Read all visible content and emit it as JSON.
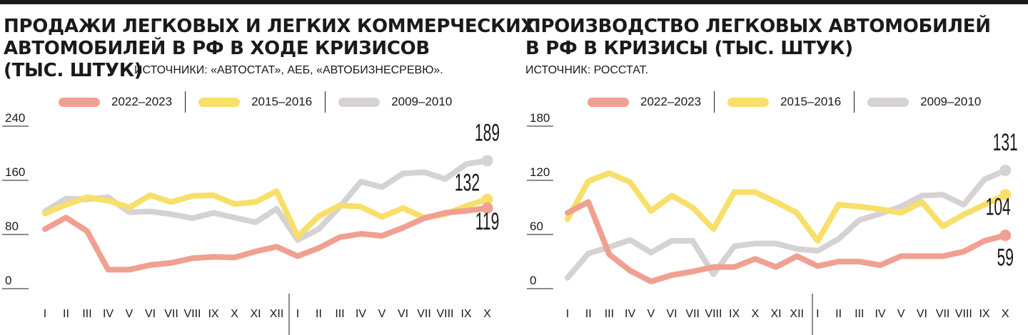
{
  "chart_data": [
    {
      "type": "line",
      "title": "ПРОДАЖИ ЛЕГКОВЫХ И ЛЕГКИХ КОММЕРЧЕСКИХ АВТОМОБИЛЕЙ В РФ В ХОДЕ КРИЗИСОВ",
      "title_lines": [
        "ПРОДАЖИ ЛЕГКОВЫХ И ЛЕГКИХ КОММЕРЧЕСКИХ",
        "АВТОМОБИЛЕЙ В РФ В ХОДЕ КРИЗИСОВ"
      ],
      "unit": "(ТЫС. ШТУК)",
      "source": "ИСТОЧНИКИ: «АВТОСТАТ», АЕБ, «АВТОБИЗНЕСРЕВЮ».",
      "categories": [
        "I",
        "II",
        "III",
        "IV",
        "V",
        "VI",
        "VII",
        "VIII",
        "IX",
        "X",
        "XI",
        "XII",
        "I",
        "II",
        "III",
        "IV",
        "V",
        "VI",
        "VII",
        "VIII",
        "IX",
        "X"
      ],
      "ylim": [
        0,
        240
      ],
      "yticks": [
        0,
        80,
        160,
        240
      ],
      "legend_position": "top",
      "series": [
        {
          "name": "2022–2023",
          "color": "#f0a090",
          "values": [
            88,
            105,
            85,
            28,
            28,
            35,
            38,
            45,
            47,
            46,
            55,
            62,
            48,
            60,
            76,
            81,
            78,
            90,
            104,
            112,
            115,
            119
          ],
          "end_label": "119"
        },
        {
          "name": "2015–2016",
          "color": "#f7df6a",
          "values": [
            111,
            124,
            135,
            130,
            120,
            138,
            128,
            137,
            138,
            125,
            128,
            144,
            77,
            107,
            123,
            121,
            106,
            119,
            105,
            110,
            122,
            132
          ],
          "end_label": "132"
        },
        {
          "name": "2009–2010",
          "color": "#d6d2d4",
          "values": [
            114,
            133,
            132,
            135,
            113,
            114,
            110,
            104,
            112,
            105,
            98,
            118,
            72,
            88,
            121,
            158,
            150,
            170,
            172,
            162,
            184,
            189
          ],
          "end_label": "189"
        }
      ]
    },
    {
      "type": "line",
      "title": "ПРОИЗВОДСТВО ЛЕГКОВЫХ АВТОМОБИЛЕЙ В РФ В КРИЗИСЫ (ТЫС. ШТУК)",
      "title_lines": [
        "ПРОИЗВОДСТВО ЛЕГКОВЫХ АВТОМОБИЛЕЙ",
        "В РФ В КРИЗИСЫ (ТЫС. ШТУК)"
      ],
      "source": "ИСТОЧНИК: РОССТАТ.",
      "categories": [
        "I",
        "II",
        "III",
        "IV",
        "V",
        "VI",
        "VII",
        "VIII",
        "IX",
        "X",
        "XI",
        "XII",
        "I",
        "II",
        "III",
        "IV",
        "V",
        "VI",
        "VII",
        "VIII",
        "IX",
        "X"
      ],
      "ylim": [
        0,
        180
      ],
      "yticks": [
        0,
        60,
        120,
        180
      ],
      "legend_position": "top",
      "series": [
        {
          "name": "2022–2023",
          "color": "#f0a090",
          "values": [
            84,
            96,
            38,
            20,
            8,
            15,
            19,
            24,
            24,
            33,
            24,
            36,
            25,
            30,
            30,
            26,
            36,
            36,
            36,
            41,
            53,
            59
          ],
          "end_label": "59"
        },
        {
          "name": "2015–2016",
          "color": "#f7df6a",
          "values": [
            77,
            119,
            128,
            118,
            86,
            103,
            90,
            66,
            107,
            107,
            96,
            84,
            53,
            93,
            91,
            88,
            84,
            96,
            69,
            82,
            93,
            104
          ],
          "end_label": "104"
        },
        {
          "name": "2009–2010",
          "color": "#d6d2d4",
          "values": [
            12,
            39,
            46,
            54,
            40,
            53,
            53,
            16,
            47,
            50,
            50,
            44,
            42,
            55,
            76,
            83,
            91,
            103,
            104,
            93,
            121,
            131
          ],
          "end_label": "131"
        }
      ]
    }
  ]
}
